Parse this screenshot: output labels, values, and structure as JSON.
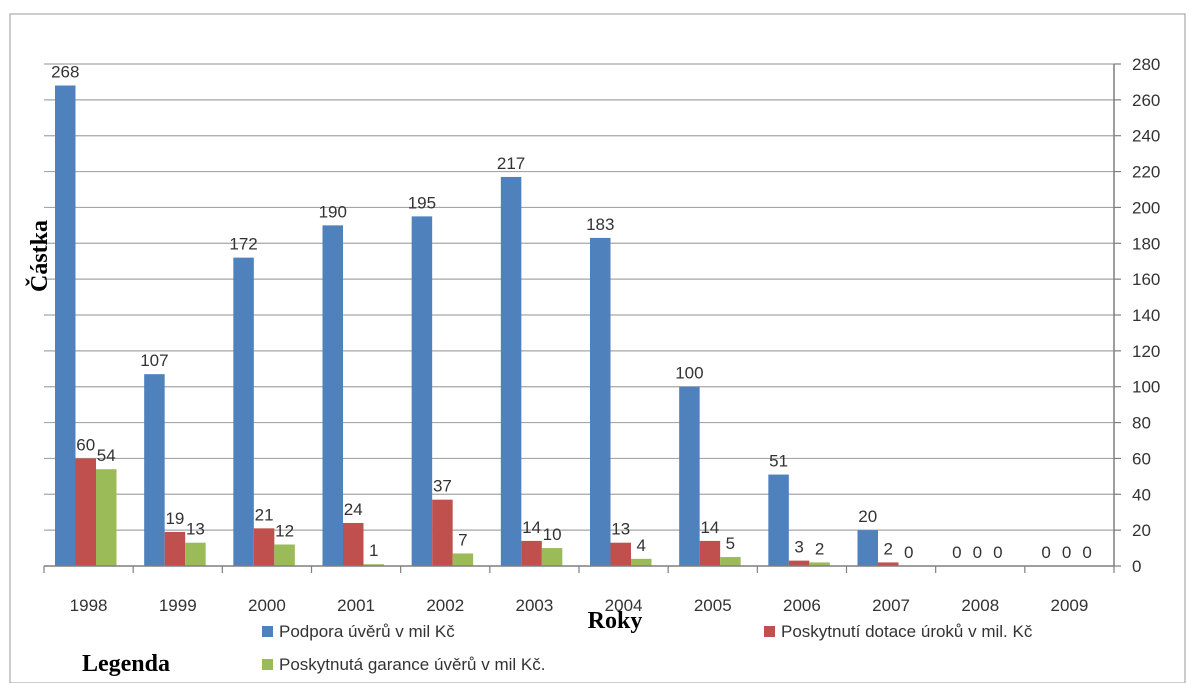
{
  "chart_data": {
    "type": "bar",
    "categories": [
      "1998",
      "1999",
      "2000",
      "2001",
      "2002",
      "2003",
      "2004",
      "2005",
      "2006",
      "2007",
      "2008",
      "2009"
    ],
    "series": [
      {
        "name": "Podpora úvěrů v mil Kč",
        "color": "#4f81bd",
        "values": [
          268,
          107,
          172,
          190,
          195,
          217,
          183,
          100,
          51,
          20,
          0,
          0
        ]
      },
      {
        "name": "Poskytnutí dotace úroků v mil. Kč",
        "color": "#c0504d",
        "values": [
          60,
          19,
          21,
          24,
          37,
          14,
          13,
          14,
          3,
          2,
          0,
          0
        ]
      },
      {
        "name": "Poskytnutá garance úvěrů v mil Kč.",
        "color": "#9bbb59",
        "values": [
          54,
          13,
          12,
          1,
          7,
          10,
          4,
          5,
          2,
          0,
          0,
          0
        ]
      }
    ],
    "xlabel": "Roky",
    "ylabel": "Částka",
    "ylim": [
      0,
      280
    ],
    "yticks": [
      "0",
      "20",
      "40",
      "60",
      "80",
      "100",
      "120",
      "140",
      "160",
      "180",
      "200",
      "220",
      "240",
      "260",
      "280"
    ],
    "grid": true,
    "y_axis_side": "right",
    "legend_title": "Legenda",
    "legend_position": "bottom"
  }
}
